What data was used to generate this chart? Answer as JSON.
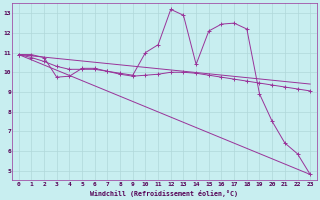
{
  "background_color": "#c8eef0",
  "grid_color": "#b0d8da",
  "line_color": "#993399",
  "xlabel": "Windchill (Refroidissement éolien,°C)",
  "xlim": [
    -0.5,
    23.5
  ],
  "ylim": [
    4.5,
    13.5
  ],
  "yticks": [
    5,
    6,
    7,
    8,
    9,
    10,
    11,
    12,
    13
  ],
  "xticks": [
    0,
    1,
    2,
    3,
    4,
    5,
    6,
    7,
    8,
    9,
    10,
    11,
    12,
    13,
    14,
    15,
    16,
    17,
    18,
    19,
    20,
    21,
    22,
    23
  ],
  "series": [
    {
      "x": [
        0,
        1,
        2,
        3,
        4,
        5,
        6,
        7,
        8,
        9,
        10,
        11,
        12,
        13,
        14,
        15,
        16,
        17,
        18,
        19,
        20,
        21,
        22,
        23
      ],
      "y": [
        10.9,
        10.9,
        10.75,
        9.75,
        9.8,
        10.2,
        10.2,
        10.05,
        9.95,
        9.85,
        11.0,
        11.4,
        13.2,
        12.9,
        10.4,
        12.1,
        12.45,
        12.5,
        12.2,
        8.9,
        7.5,
        6.4,
        5.85,
        4.8
      ],
      "marker": true
    },
    {
      "x": [
        0,
        1,
        2,
        3,
        4,
        5,
        6,
        7,
        8,
        9,
        10,
        11,
        12,
        13,
        14,
        15,
        16,
        17,
        18,
        19,
        20,
        21,
        22,
        23
      ],
      "y": [
        10.9,
        10.75,
        10.55,
        10.3,
        10.15,
        10.15,
        10.15,
        10.05,
        9.9,
        9.8,
        9.85,
        9.9,
        10.0,
        10.0,
        9.95,
        9.85,
        9.75,
        9.65,
        9.55,
        9.45,
        9.35,
        9.25,
        9.15,
        9.05
      ],
      "marker": true
    },
    {
      "x": [
        0,
        23
      ],
      "y": [
        10.9,
        4.8
      ],
      "marker": false
    },
    {
      "x": [
        0,
        23
      ],
      "y": [
        10.9,
        9.4
      ],
      "marker": false
    }
  ]
}
